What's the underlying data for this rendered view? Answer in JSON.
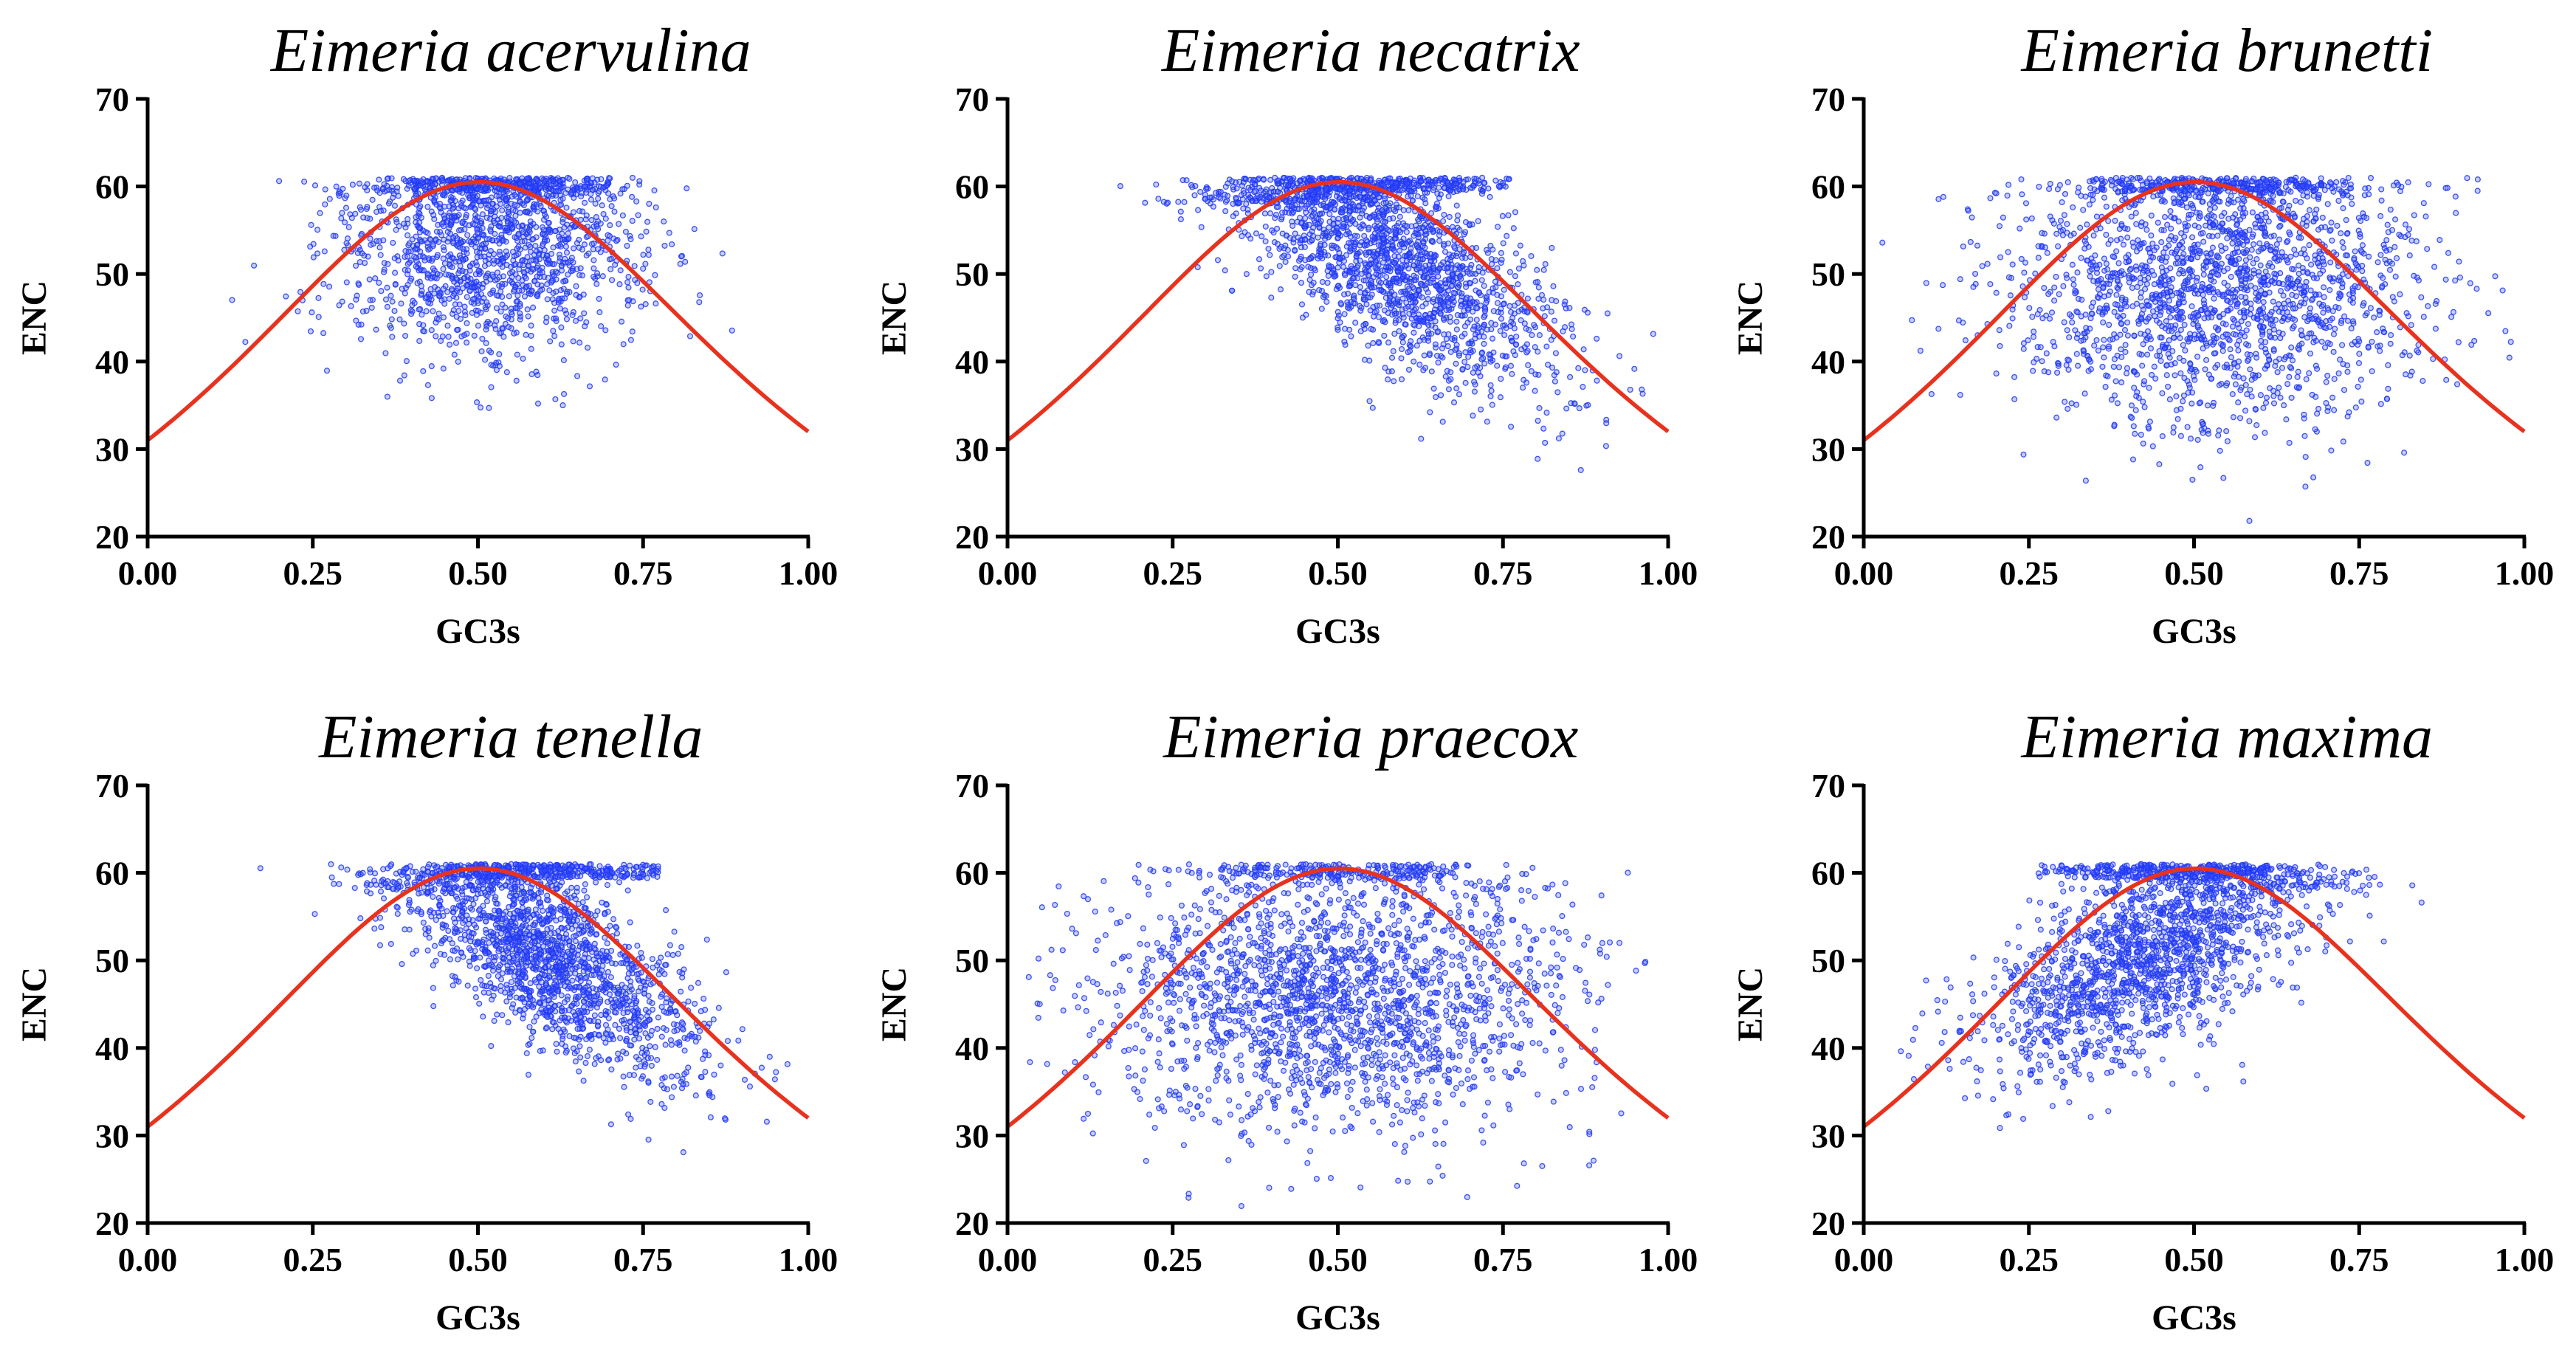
{
  "chart_data": [
    {
      "type": "scatter",
      "title": "Eimeria acervulina",
      "xlabel": "GC3s",
      "ylabel": "ENC",
      "xlim": [
        0.0,
        1.0
      ],
      "ylim": [
        20,
        70
      ],
      "xticks": [
        "0.00",
        "0.25",
        "0.50",
        "0.75",
        "1.00"
      ],
      "yticks": [
        "20",
        "30",
        "40",
        "50",
        "60",
        "70"
      ],
      "expected_curve": "ENC = 2 + GC3s + 29/(GC3s^2 + (1 - GC3s)^2)",
      "curve_color": "#e8321e",
      "point_color": "#2f4bff",
      "points_summary": {
        "n": 1700,
        "x_center": 0.52,
        "x_sd": 0.11,
        "enc_max": 61,
        "enc_mean_at_center": 53,
        "enc_sd": 6,
        "cap_fraction": 0.18
      },
      "grid": false,
      "legend": "none"
    },
    {
      "type": "scatter",
      "title": "Eimeria necatrix",
      "xlabel": "GC3s",
      "ylabel": "ENC",
      "xlim": [
        0.0,
        1.0
      ],
      "ylim": [
        20,
        70
      ],
      "xticks": [
        "0.00",
        "0.25",
        "0.50",
        "0.75",
        "1.00"
      ],
      "yticks": [
        "20",
        "30",
        "40",
        "50",
        "60",
        "70"
      ],
      "expected_curve": "ENC = 2 + GC3s + 29/(GC3s^2 + (1 - GC3s)^2)",
      "curve_color": "#e8321e",
      "point_color": "#2f4bff",
      "points_summary": {
        "n": 2100,
        "x_center": 0.58,
        "x_sd": 0.12,
        "enc_max": 61,
        "enc_mean_at_center": 52,
        "enc_sd": 5.5,
        "enc_slope": -40,
        "cap_fraction": 0.15
      },
      "grid": false,
      "legend": "none"
    },
    {
      "type": "scatter",
      "title": "Eimeria brunetti",
      "xlabel": "GC3s",
      "ylabel": "ENC",
      "xlim": [
        0.0,
        1.0
      ],
      "ylim": [
        20,
        70
      ],
      "xticks": [
        "0.00",
        "0.25",
        "0.50",
        "0.75",
        "1.00"
      ],
      "yticks": [
        "20",
        "30",
        "40",
        "50",
        "60",
        "70"
      ],
      "expected_curve": "ENC = 2 + GC3s + 29/(GC3s^2 + (1 - GC3s)^2)",
      "curve_color": "#e8321e",
      "point_color": "#2f4bff",
      "points_summary": {
        "n": 2200,
        "x_center": 0.54,
        "x_sd": 0.15,
        "enc_max": 61,
        "enc_mean_at_center": 49,
        "enc_sd": 8,
        "cap_fraction": 0.14
      },
      "grid": false,
      "legend": "none"
    },
    {
      "type": "scatter",
      "title": "Eimeria tenella",
      "xlabel": "GC3s",
      "ylabel": "ENC",
      "xlim": [
        0.0,
        1.0
      ],
      "ylim": [
        20,
        70
      ],
      "xticks": [
        "0.00",
        "0.25",
        "0.50",
        "0.75",
        "1.00"
      ],
      "yticks": [
        "20",
        "30",
        "40",
        "50",
        "60",
        "70"
      ],
      "expected_curve": "ENC = 2 + GC3s + 29/(GC3s^2 + (1 - GC3s)^2)",
      "curve_color": "#e8321e",
      "point_color": "#2f4bff",
      "points_summary": {
        "n": 2100,
        "x_center": 0.6,
        "x_sd": 0.11,
        "enc_max": 61,
        "enc_mean_at_center": 51,
        "enc_sd": 5,
        "enc_slope": -42,
        "cap_fraction": 0.17
      },
      "grid": false,
      "legend": "none"
    },
    {
      "type": "scatter",
      "title": "Eimeria praecox",
      "xlabel": "GC3s",
      "ylabel": "ENC",
      "xlim": [
        0.0,
        1.0
      ],
      "ylim": [
        20,
        70
      ],
      "xticks": [
        "0.00",
        "0.25",
        "0.50",
        "0.75",
        "1.00"
      ],
      "yticks": [
        "20",
        "30",
        "40",
        "50",
        "60",
        "70"
      ],
      "expected_curve": "ENC = 2 + GC3s + 29/(GC3s^2 + (1 - GC3s)^2)",
      "curve_color": "#e8321e",
      "point_color": "#2f4bff",
      "points_summary": {
        "n": 2200,
        "x_center": 0.5,
        "x_sd": 0.17,
        "enc_max": 61,
        "enc_mean_at_center": 46,
        "enc_sd": 8,
        "cap_fraction": 0.12
      },
      "grid": false,
      "legend": "none"
    },
    {
      "type": "scatter",
      "title": "Eimeria maxima",
      "xlabel": "GC3s",
      "ylabel": "ENC",
      "xlim": [
        0.0,
        1.0
      ],
      "ylim": [
        20,
        70
      ],
      "xticks": [
        "0.00",
        "0.25",
        "0.50",
        "0.75",
        "1.00"
      ],
      "yticks": [
        "20",
        "30",
        "40",
        "50",
        "60",
        "70"
      ],
      "expected_curve": "ENC = 2 + GC3s + 29/(GC3s^2 + (1 - GC3s)^2)",
      "curve_color": "#e8321e",
      "point_color": "#2f4bff",
      "points_summary": {
        "n": 2000,
        "x_center": 0.44,
        "x_sd": 0.12,
        "enc_max": 61,
        "enc_mean_at_center": 51,
        "enc_sd": 5.5,
        "enc_slope": 35,
        "cap_fraction": 0.15
      },
      "grid": false,
      "legend": "none"
    }
  ]
}
